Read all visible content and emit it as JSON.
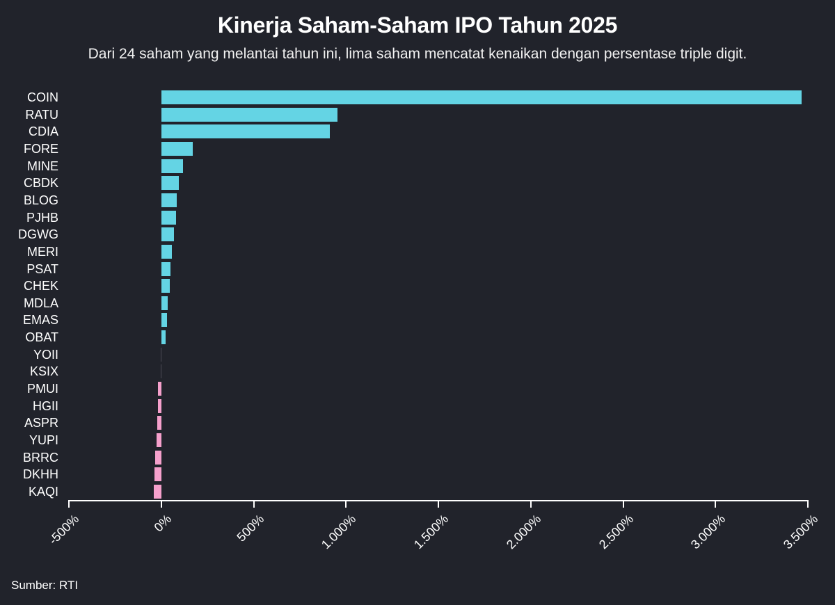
{
  "header": {
    "title": "Kinerja Saham-Saham IPO Tahun 2025",
    "subtitle": "Dari 24 saham yang melantai tahun ini, lima saham mencatat kenaikan dengan persentase triple digit."
  },
  "footer": {
    "source": "Sumber: RTI"
  },
  "colors": {
    "background": "#21232b",
    "positive": "#64d4e4",
    "negative": "#f5a0cc",
    "near_zero": "#4a4a55",
    "axis": "#ffffff"
  },
  "chart_data": {
    "type": "bar",
    "orientation": "horizontal",
    "title": "Kinerja Saham-Saham IPO Tahun 2025",
    "subtitle": "Dari 24 saham yang melantai tahun ini, lima saham mencatat kenaikan dengan persentase triple digit.",
    "xlabel": "",
    "ylabel": "",
    "xlim": [
      -500,
      3500
    ],
    "x_ticks": [
      -500,
      0,
      500,
      1000,
      1500,
      2000,
      2500,
      3000,
      3500
    ],
    "x_tick_labels": [
      "-500%",
      "0%",
      "500%",
      "1.000%",
      "1.500%",
      "2.000%",
      "2.500%",
      "3.000%",
      "3.500%"
    ],
    "grid": false,
    "legend": null,
    "categories": [
      "COIN",
      "RATU",
      "CDIA",
      "FORE",
      "MINE",
      "CBDK",
      "BLOG",
      "PJHB",
      "DGWG",
      "MERI",
      "PSAT",
      "CHEK",
      "MDLA",
      "EMAS",
      "OBAT",
      "YOII",
      "KSIX",
      "PMUI",
      "HGII",
      "ASPR",
      "YUPI",
      "BRRC",
      "DKHH",
      "KAQI"
    ],
    "values": [
      3466,
      953,
      912,
      170,
      117,
      94,
      83,
      79,
      68,
      57,
      49,
      45,
      34,
      30,
      23,
      -1,
      -5,
      -20,
      -20,
      -23,
      -28,
      -33,
      -37,
      -41
    ],
    "unit": "%",
    "source": "Sumber: RTI"
  }
}
